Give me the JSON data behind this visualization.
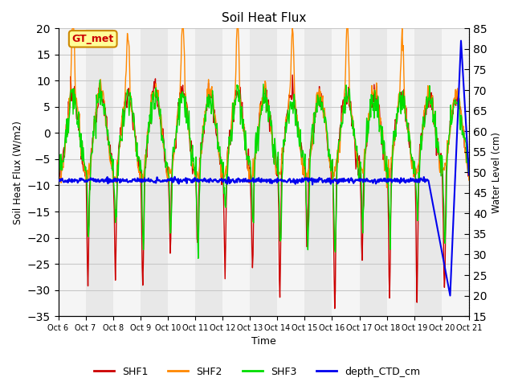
{
  "title": "Soil Heat Flux",
  "xlabel": "Time",
  "ylabel_left": "Soil Heat Flux (W/m2)",
  "ylabel_right": "Water Level (cm)",
  "ylim_left": [
    -35,
    20
  ],
  "ylim_right": [
    15,
    85
  ],
  "yticks_left": [
    -35,
    -30,
    -25,
    -20,
    -15,
    -10,
    -5,
    0,
    5,
    10,
    15,
    20
  ],
  "yticks_right": [
    15,
    20,
    25,
    30,
    35,
    40,
    45,
    50,
    55,
    60,
    65,
    70,
    75,
    80,
    85
  ],
  "colors": {
    "SHF1": "#cc0000",
    "SHF2": "#ff8800",
    "SHF3": "#00dd00",
    "depth_CTD_cm": "#0000ee"
  },
  "legend_labels": [
    "SHF1",
    "SHF2",
    "SHF3",
    "depth_CTD_cm"
  ],
  "annotation_text": "GT_met",
  "annotation_box_facecolor": "#ffff99",
  "annotation_box_edgecolor": "#cc8800",
  "annotation_text_color": "#cc0000",
  "background_colors": [
    "#f5f5f5",
    "#e8e8e8"
  ],
  "grid_color": "#c8c8c8",
  "n_days": 15,
  "n_per_day": 48
}
